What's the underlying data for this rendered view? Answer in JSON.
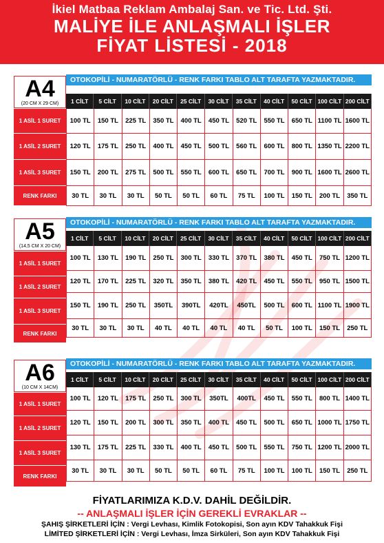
{
  "header": {
    "company": "İkiel Matbaa Reklam Ambalaj San. ve Tic. Ltd. Şti.",
    "title": "MALİYE İLE ANLAŞMALI İŞLER",
    "subtitle": "FİYAT LİSTESİ - 2018"
  },
  "columns": [
    "1 CİLT",
    "5 CİLT",
    "10 CİLT",
    "20 CİLT",
    "25 CİLT",
    "30 CİLT",
    "35 CİLT",
    "40 CİLT",
    "50 CİLT",
    "100 CİLT",
    "200 CİLT"
  ],
  "banner": "OTOKOPİLİ - NUMARATÖRLÜ - RENK FARKI TABLO ALT TARAFTA YAZMAKTADIR.",
  "sections": [
    {
      "size": "A4",
      "dimensions": "(20 CM X 29 CM)",
      "rows": [
        {
          "label": "1 ASİL 1 SURET",
          "values": [
            "100 TL",
            "150 TL",
            "225 TL",
            "350 TL",
            "400 TL",
            "450 TL",
            "520 TL",
            "550 TL",
            "650 TL",
            "1100 TL",
            "1600 TL"
          ]
        },
        {
          "label": "1 ASİL 2 SURET",
          "values": [
            "120 TL",
            "175 TL",
            "250 TL",
            "400 TL",
            "450 TL",
            "500 TL",
            "560 TL",
            "600 TL",
            "800 TL",
            "1350 TL",
            "2200 TL"
          ]
        },
        {
          "label": "1 ASİL 3 SURET",
          "values": [
            "150 TL",
            "200 TL",
            "275 TL",
            "500 TL",
            "550 TL",
            "600 TL",
            "650 TL",
            "700 TL",
            "900 TL",
            "1600 TL",
            "2600 TL"
          ]
        },
        {
          "label": "RENK FARKI",
          "values": [
            "30 TL",
            "30 TL",
            "30 TL",
            "50 TL",
            "50 TL",
            "60 TL",
            "75 TL",
            "100 TL",
            "150 TL",
            "200 TL",
            "350 TL"
          ]
        }
      ]
    },
    {
      "size": "A5",
      "dimensions": "(14,5 CM X 20 CM)",
      "rows": [
        {
          "label": "1 ASİL 1 SURET",
          "values": [
            "100 TL",
            "130 TL",
            "190 TL",
            "250 TL",
            "300 TL",
            "330 TL",
            "370 TL",
            "380 TL",
            "450 TL",
            "750 TL",
            "1200 TL"
          ]
        },
        {
          "label": "1 ASİL 2 SURET",
          "values": [
            "120 TL",
            "170 TL",
            "225 TL",
            "320 TL",
            "350 TL",
            "380 TL",
            "420 TL",
            "450 TL",
            "550 TL",
            "950 TL",
            "1500 TL"
          ]
        },
        {
          "label": "1 ASİL 3 SURET",
          "values": [
            "150 TL",
            "190 TL",
            "250 TL",
            "350TL",
            "390TL",
            "420TL",
            "450TL",
            "500 TL",
            "600 TL",
            "1100 TL",
            "1900 TL"
          ]
        },
        {
          "label": "RENK FARKI",
          "values": [
            "30 TL",
            "30 TL",
            "30 TL",
            "40 TL",
            "40 TL",
            "40 TL",
            "40 TL",
            "50 TL",
            "100 TL",
            "150 TL",
            "250 TL"
          ]
        }
      ]
    },
    {
      "size": "A6",
      "dimensions": "(10 CM X 14CM)",
      "rows": [
        {
          "label": "1 ASİL 1 SURET",
          "values": [
            "100 TL",
            "120 TL",
            "175 TL",
            "250 TL",
            "300 TL",
            "350TL",
            "400TL",
            "450 TL",
            "550 TL",
            "800 TL",
            "1400 TL"
          ]
        },
        {
          "label": "1 ASİL 2 SURET",
          "values": [
            "120 TL",
            "150 TL",
            "200 TL",
            "300 TL",
            "350 TL",
            "400 TL",
            "450 TL",
            "500 TL",
            "650 TL",
            "1000 TL",
            "1750 TL"
          ]
        },
        {
          "label": "1 ASİL 3 SURET",
          "values": [
            "130 TL",
            "175 TL",
            "225 TL",
            "330 TL",
            "400 TL",
            "450 TL",
            "500 TL",
            "550 TL",
            "750 TL",
            "1200 TL",
            "2000 TL"
          ]
        },
        {
          "label": "RENK FARKI",
          "values": [
            "30 TL",
            "30 TL",
            "30 TL",
            "50 TL",
            "50 TL",
            "60 TL",
            "75 TL",
            "100 TL",
            "100 TL",
            "150 TL",
            "250 TL"
          ]
        }
      ]
    }
  ],
  "footer": {
    "vat_note": "FİYATLARIMIZA K.D.V. DAHİL DEĞİLDİR.",
    "docs_title": "-- ANLAŞMALI İŞLER İÇİN GEREKLİ EVRAKLAR --",
    "sole_prop": "ŞAHIŞ ŞİRKETLERİ İÇİN : Vergi Levhası, Kimlik Fotokopisi, Son ayın KDV Tahakkuk Fişi",
    "limited": "LİMİTED ŞİRKETLERİ  İÇİN : Vergi Levhası, İmza Sirküleri, Son ayın KDV Tahakkuk Fişi"
  },
  "colors": {
    "red": "#e8202a",
    "blue": "#2a9de0",
    "black": "#1a1a1a"
  }
}
